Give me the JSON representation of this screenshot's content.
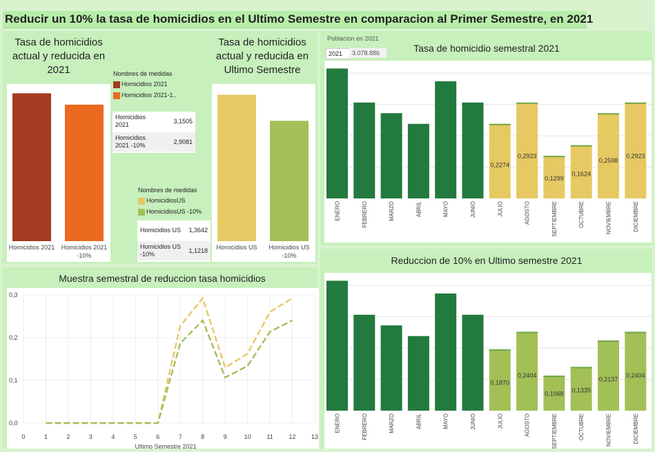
{
  "page_title": "Reducir un 10% la tasa de homicidios en el Ultimo Semestre en comparacion al Primer Semestre, en 2021",
  "colors": {
    "dark_red": "#a53b22",
    "orange": "#ea6a1f",
    "yellow": "#e6c962",
    "light_green": "#a3c057",
    "dark_green": "#237a3e",
    "panel_green": "#c7f0bc"
  },
  "chart_annual": {
    "title": "Tasa de homicidios actual y reducida en 2021",
    "legend_title": "Nombres de medidas",
    "legend": [
      "Homicidios 2021",
      "Homicidios 2021-1.."
    ],
    "table": [
      {
        "label": "Homicidios 2021",
        "value": "3,1505"
      },
      {
        "label": "Homicidios 2021 -10%",
        "value": "2,9081"
      }
    ],
    "chart_data": {
      "type": "bar",
      "categories": [
        "Homicidios 2021",
        "Homicidios 2021 -10%"
      ],
      "values": [
        3.1505,
        2.9081
      ]
    }
  },
  "chart_us": {
    "title": "Tasa de homicidios actual y reducida en Ultimo Semestre",
    "legend_title": "Nombres de medidas",
    "legend": [
      "HomicidiosUS",
      "HomicidiosUS -10%"
    ],
    "table": [
      {
        "label": "Homicidios US",
        "value": "1,3642"
      },
      {
        "label": "Homicidios US -10%",
        "value": "1,1218"
      }
    ],
    "chart_data": {
      "type": "bar",
      "categories": [
        "Homicidios US",
        "Homicidios US -10%"
      ],
      "values": [
        1.3642,
        1.1218
      ]
    }
  },
  "filter": {
    "label": "Poblacion en 2021",
    "year": "2021",
    "value": "3.078.886"
  },
  "chart_monthly": {
    "title": "Tasa de homicidio semestral 2021",
    "chart_data": {
      "type": "bar",
      "categories": [
        "ENERO",
        "FEBRERO",
        "MARZO",
        "ABRIL",
        "MAYO",
        "JUNIO",
        "JULIO",
        "AGOSTO",
        "SEPTIEMBRE",
        "OCTUBRE",
        "NOVIEMBRE",
        "DICIEMBRE"
      ],
      "values": [
        0.396,
        0.2923,
        0.2599,
        0.2274,
        0.3571,
        0.2923,
        0.2274,
        0.2923,
        0.1299,
        0.1624,
        0.2598,
        0.2923
      ],
      "data_labels": [
        "",
        "",
        "",
        "",
        "",
        "",
        "0,2274",
        "0,2923",
        "0,1299",
        "0,1624",
        "0,2598",
        "0,2923"
      ],
      "ylim": [
        0,
        0.42
      ]
    }
  },
  "chart_reduction": {
    "title": "Reduccion de 10% en Ultimo semestre 2021",
    "chart_data": {
      "type": "bar",
      "categories": [
        "ENERO",
        "FEBRERO",
        "MARZO",
        "ABRIL",
        "MAYO",
        "JUNIO",
        "JULIO",
        "AGOSTO",
        "SEPTIEMBRE",
        "OCTUBRE",
        "NOVIEMBRE",
        "DICIEMBRE"
      ],
      "values": [
        0.396,
        0.2923,
        0.2599,
        0.2274,
        0.3571,
        0.2923,
        0.187,
        0.2404,
        0.1068,
        0.1335,
        0.2137,
        0.2404
      ],
      "data_labels": [
        "",
        "",
        "",
        "",
        "",
        "",
        "0,1870",
        "0,2404",
        "0,1068",
        "0,1335",
        "0,2137",
        "0,2404"
      ],
      "ylim": [
        0,
        0.42
      ]
    }
  },
  "chart_line": {
    "title": "Muestra semestral de reduccion tasa homicidios",
    "chart_data": {
      "type": "line",
      "x": [
        0,
        1,
        2,
        3,
        4,
        5,
        6,
        7,
        8,
        9,
        10,
        11,
        12,
        13
      ],
      "xlabel": "Ultimo Semestre 2021",
      "xlim": [
        0,
        13
      ],
      "ylim": [
        0,
        0.3
      ],
      "yticks": [
        "0,0",
        "0,1",
        "0,2",
        "0,3"
      ],
      "series": [
        {
          "x": [
            1,
            2,
            3,
            4,
            5,
            6,
            7,
            8,
            9,
            10,
            11,
            12
          ],
          "values": [
            0,
            0,
            0,
            0,
            0,
            0,
            0.2274,
            0.2923,
            0.1299,
            0.1624,
            0.2598,
            0.2923
          ]
        },
        {
          "x": [
            1,
            2,
            3,
            4,
            5,
            6,
            7,
            8,
            9,
            10,
            11,
            12
          ],
          "values": [
            0,
            0,
            0,
            0,
            0,
            0,
            0.187,
            0.2404,
            0.1068,
            0.1335,
            0.2137,
            0.2404
          ]
        }
      ]
    }
  }
}
